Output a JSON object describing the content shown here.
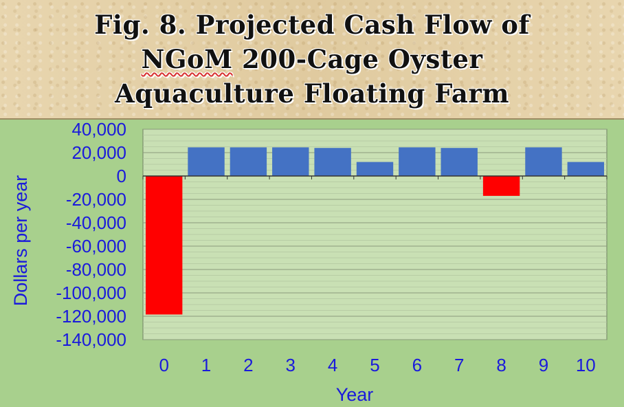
{
  "title": {
    "line1": "Fig. 8. Projected Cash Flow of",
    "line2_a": "NGoM",
    "line2_b": " 200-Cage Oyster",
    "line3": "Aquaculture Floating Farm"
  },
  "colors": {
    "positive": "#4472c4",
    "negative": "#ff0000",
    "plot_bg": "#c9e0b4",
    "page_bg": "#a8d08d",
    "text": "#1a1adb"
  },
  "chart_data": {
    "type": "bar",
    "title": "Fig. 8. Projected Cash Flow of NGoM 200-Cage Oyster Aquaculture Floating Farm",
    "xlabel": "Year",
    "ylabel": "Dollars per year",
    "categories": [
      "0",
      "1",
      "2",
      "3",
      "4",
      "5",
      "6",
      "7",
      "8",
      "9",
      "10"
    ],
    "values": [
      -118500,
      24500,
      24500,
      24500,
      24000,
      12000,
      24500,
      24000,
      -17000,
      24500,
      12000
    ],
    "ylim": [
      -140000,
      40000
    ],
    "yticks": [
      40000,
      20000,
      0,
      -20000,
      -40000,
      -60000,
      -80000,
      -100000,
      -120000,
      -140000
    ],
    "ytick_labels": [
      "40,000",
      "20,000",
      "0",
      "-20,000",
      "-40,000",
      "-60,000",
      "-80,000",
      "-100,000",
      "-120,000",
      "-140,000"
    ],
    "grid": true,
    "legend": "none"
  }
}
